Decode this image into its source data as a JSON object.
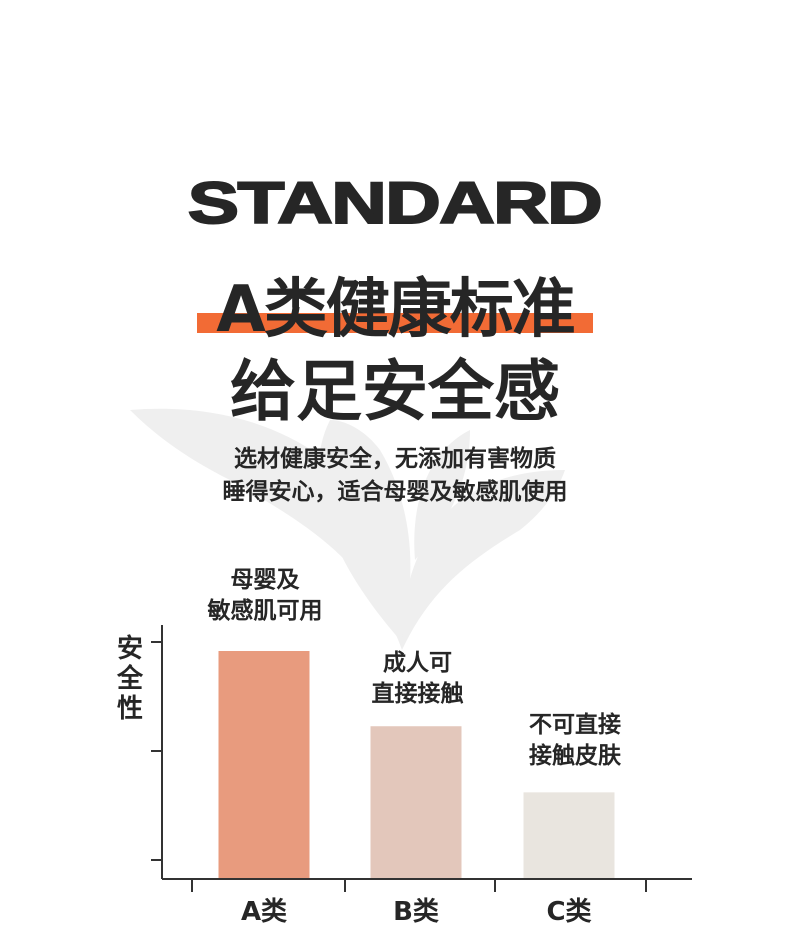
{
  "header": {
    "title_en": "STANDARD",
    "title_cn_line1": "A类健康标准",
    "title_cn_line2": "给足安全感",
    "subtitle_line1": "选材健康安全，无添加有害物质",
    "subtitle_line2": "睡得安心，适合母婴及敏感肌使用"
  },
  "colors": {
    "accent_stripe": "#f26b35",
    "text": "#262626",
    "leaf_watermark": "#efefef"
  },
  "chart_data": {
    "type": "bar",
    "title": "",
    "xlabel": "",
    "ylabel": "安全性",
    "categories": [
      "A类",
      "B类",
      "C类"
    ],
    "values": [
      100,
      67,
      38
    ],
    "value_unit": "relative (A = 100)",
    "ylim": [
      0,
      104
    ],
    "colors": [
      "#e89b7e",
      "#e3c7bb",
      "#e9e5df"
    ],
    "annotations": [
      {
        "category": "A类",
        "lines": [
          "母婴及",
          "敏感肌可用"
        ]
      },
      {
        "category": "B类",
        "lines": [
          "成人可",
          "直接接触"
        ]
      },
      {
        "category": "C类",
        "lines": [
          "不可直接",
          "接触皮肤"
        ]
      }
    ],
    "grid": false,
    "legend": "none"
  }
}
